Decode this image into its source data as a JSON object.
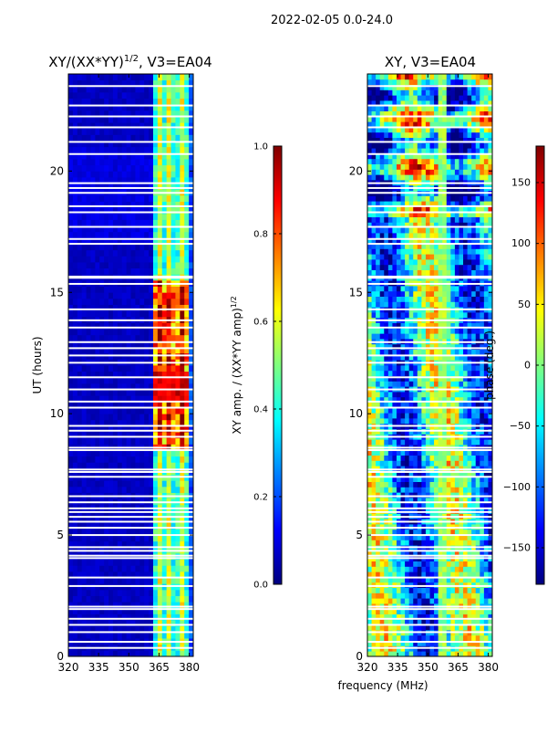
{
  "suptitle": "2022-02-05 0.0-24.0",
  "colors": {
    "jet": [
      "#00007f",
      "#0000ff",
      "#007fff",
      "#00ffff",
      "#7fff7f",
      "#ffff00",
      "#ff7f00",
      "#ff0000",
      "#7f0000"
    ],
    "gap": "#ffffff"
  },
  "chart_data": [
    {
      "type": "heatmap",
      "title_main": "XY/(XX*YY)",
      "title_sup": "1/2",
      "title_rest": ", V3=EA04",
      "xlabel": "",
      "ylabel": "UT (hours)",
      "xlim": [
        320,
        382
      ],
      "ylim": [
        0,
        24
      ],
      "xticks": [
        320,
        335,
        350,
        365,
        380
      ],
      "yticks": [
        0,
        5,
        10,
        15,
        20
      ],
      "description": "amplitude ratio, mostly ~0.05 below 360 MHz; bright striped band 360-378 MHz",
      "colorbar": {
        "label_main": "XY amp. / (XX*YY amp)",
        "label_sup": "1/2",
        "range": [
          0.0,
          1.0
        ],
        "ticks": [
          0.0,
          0.2,
          0.4,
          0.6,
          0.8,
          1.0
        ],
        "tick_labels": [
          "0.0",
          "0.2",
          "0.4",
          "0.6",
          "0.8",
          "1.0"
        ]
      }
    },
    {
      "type": "heatmap",
      "title": "XY, V3=EA04",
      "xlabel": "frequency (MHz)",
      "ylabel": "",
      "xlim": [
        320,
        382
      ],
      "ylim": [
        0,
        24
      ],
      "xticks": [
        320,
        335,
        350,
        365,
        380
      ],
      "yticks": [
        0,
        5,
        10,
        15,
        20
      ],
      "description": "cross-hand phase in degrees, banded structure across frequency",
      "colorbar": {
        "label": "phase (deg.)",
        "range": [
          -180,
          180
        ],
        "ticks": [
          -150,
          -100,
          -50,
          0,
          50,
          100,
          150
        ],
        "tick_labels": [
          "−150",
          "−100",
          "−50",
          "0",
          "50",
          "100",
          "150"
        ]
      }
    }
  ],
  "gaps_hours": [
    0.35,
    0.6,
    1.0,
    1.3,
    1.55,
    1.95,
    2.05,
    2.9,
    3.25,
    4.05,
    4.15,
    4.35,
    4.5,
    5.0,
    5.3,
    5.55,
    5.75,
    5.95,
    6.1,
    6.35,
    6.6,
    7.4,
    7.6,
    7.7,
    8.5,
    8.6,
    9.05,
    9.3,
    9.5,
    10.25,
    10.5,
    11.0,
    11.5,
    12.1,
    12.4,
    12.7,
    12.95,
    13.55,
    13.85,
    14.3,
    15.35,
    15.6,
    15.65,
    17.0,
    17.2,
    17.7,
    18.3,
    18.55,
    19.1,
    19.3,
    19.5,
    20.7,
    21.2,
    21.8,
    22.25,
    22.7,
    23.5
  ]
}
